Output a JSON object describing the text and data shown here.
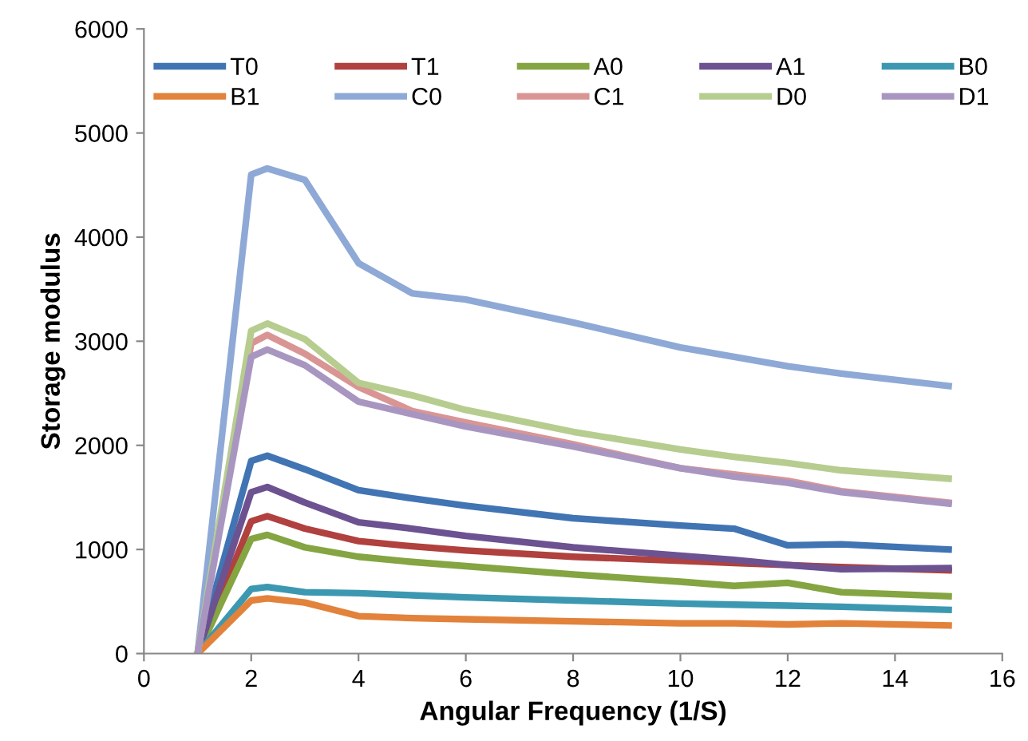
{
  "chart_data": {
    "type": "line",
    "xlabel": "Angular Frequency (1/S)",
    "ylabel": "Storage modulus",
    "x": [
      1,
      2,
      2.3,
      3,
      4,
      5,
      6,
      8,
      10,
      11,
      12,
      13,
      15
    ],
    "xlim": [
      0,
      16
    ],
    "xticks": [
      0,
      2,
      4,
      6,
      8,
      10,
      12,
      14,
      16
    ],
    "ylim": [
      0,
      6000
    ],
    "yticks": [
      0,
      1000,
      2000,
      3000,
      4000,
      5000,
      6000
    ],
    "grid": false,
    "legend": "top",
    "marker": "none",
    "line_style": "solid",
    "series": [
      {
        "name": "T0",
        "color": "#4174b3",
        "values": [
          0,
          1850,
          1900,
          1770,
          1570,
          1490,
          1420,
          1300,
          1230,
          1200,
          1040,
          1050,
          1000
        ]
      },
      {
        "name": "T1",
        "color": "#b0413e",
        "values": [
          0,
          1270,
          1320,
          1200,
          1080,
          1030,
          990,
          930,
          890,
          870,
          850,
          830,
          800
        ]
      },
      {
        "name": "A0",
        "color": "#84a541",
        "values": [
          0,
          1100,
          1140,
          1020,
          930,
          880,
          840,
          760,
          690,
          650,
          680,
          590,
          550
        ]
      },
      {
        "name": "A1",
        "color": "#6c5291",
        "values": [
          0,
          1550,
          1600,
          1450,
          1260,
          1200,
          1130,
          1020,
          940,
          900,
          850,
          810,
          820
        ]
      },
      {
        "name": "B0",
        "color": "#3c98b1",
        "values": [
          0,
          620,
          640,
          590,
          580,
          560,
          540,
          510,
          480,
          470,
          460,
          450,
          420
        ]
      },
      {
        "name": "B1",
        "color": "#e2823b",
        "values": [
          0,
          510,
          530,
          490,
          360,
          340,
          330,
          310,
          290,
          290,
          280,
          290,
          270
        ]
      },
      {
        "name": "C0",
        "color": "#8ea9d6",
        "values": [
          0,
          4600,
          4660,
          4550,
          3750,
          3460,
          3400,
          3180,
          2940,
          2850,
          2760,
          2690,
          2570
        ]
      },
      {
        "name": "C1",
        "color": "#d99594",
        "values": [
          0,
          2980,
          3060,
          2880,
          2560,
          2330,
          2220,
          2010,
          1780,
          1720,
          1660,
          1560,
          1450
        ]
      },
      {
        "name": "D0",
        "color": "#b6cd8f",
        "values": [
          0,
          3100,
          3170,
          3020,
          2600,
          2480,
          2340,
          2130,
          1960,
          1890,
          1830,
          1760,
          1680
        ]
      },
      {
        "name": "D1",
        "color": "#a896c1",
        "values": [
          0,
          2850,
          2920,
          2770,
          2420,
          2300,
          2180,
          1990,
          1780,
          1700,
          1640,
          1550,
          1440
        ]
      }
    ]
  }
}
